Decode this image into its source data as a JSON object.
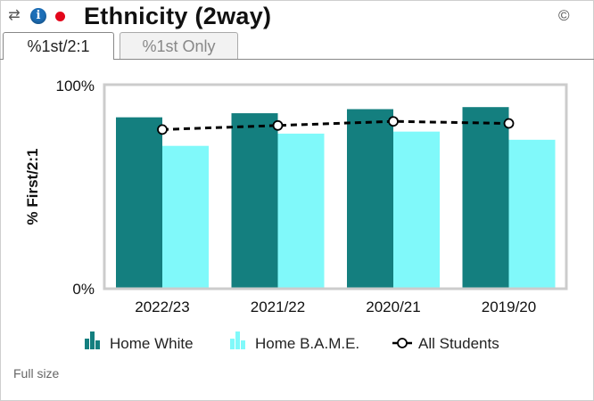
{
  "header": {
    "title": "Ethnicity (2way)",
    "copyright": "©",
    "refresh_icon": "refresh-icon",
    "info_icon": "info-icon",
    "info_glyph": "i",
    "status_dot_color": "#e3061b"
  },
  "tabs": [
    {
      "label": "%1st/2:1",
      "active": true
    },
    {
      "label": "%1st Only",
      "active": false
    }
  ],
  "footer": {
    "link": "Full size"
  },
  "chart_data": {
    "type": "bar",
    "ylabel": "% First/2:1",
    "ylim": [
      0,
      100
    ],
    "yticks": [
      "0%",
      "100%"
    ],
    "categories": [
      "2022/23",
      "2021/22",
      "2020/21",
      "2019/20"
    ],
    "series": [
      {
        "name": "Home White",
        "kind": "bar",
        "color": "#147f7f",
        "values": [
          84,
          86,
          88,
          89
        ]
      },
      {
        "name": "Home B.A.M.E.",
        "kind": "bar",
        "color": "#80f9fa",
        "values": [
          70,
          76,
          77,
          73
        ]
      },
      {
        "name": "All Students",
        "kind": "line",
        "color": "#000000",
        "style": "dashed",
        "values": [
          78,
          80,
          82,
          81
        ]
      }
    ],
    "legend_position": "bottom",
    "grid": false
  }
}
